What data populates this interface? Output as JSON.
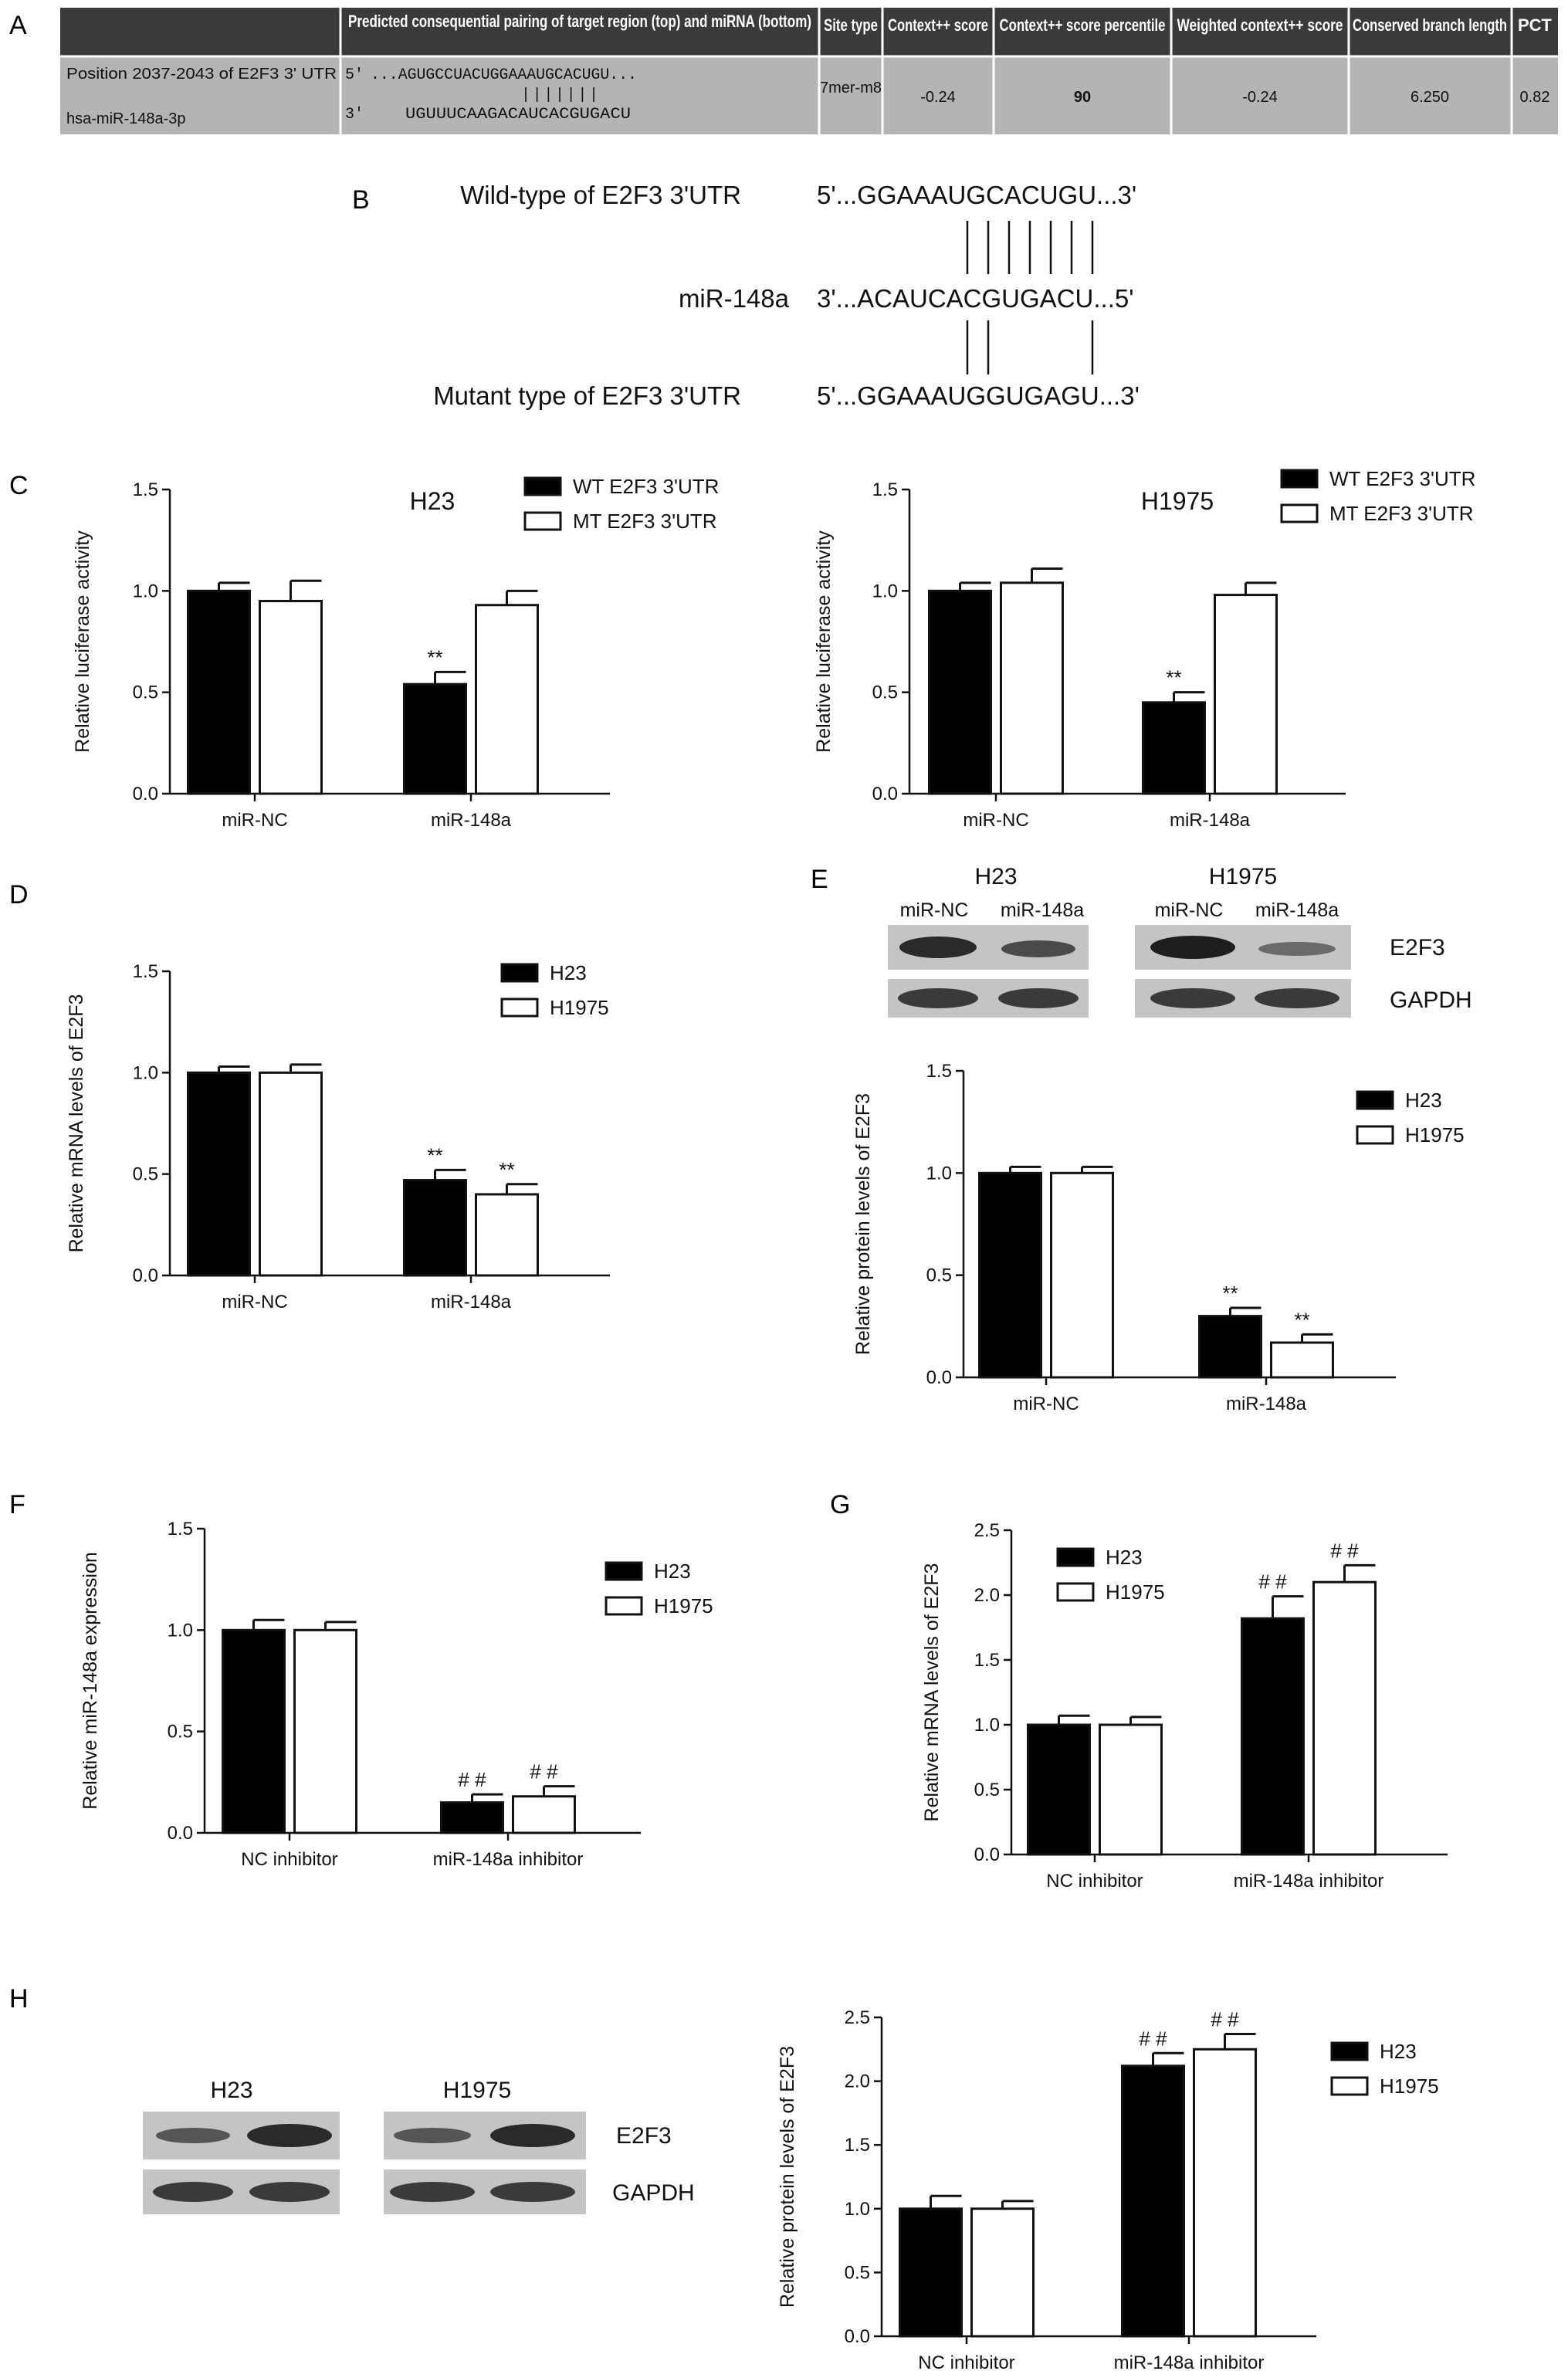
{
  "panel_labels": {
    "A": "A",
    "B": "B",
    "C": "C",
    "D": "D",
    "E": "E",
    "F": "F",
    "G": "G",
    "H": "H"
  },
  "table": {
    "headers": [
      "Predicted consequential pairing of target region (top) and miRNA (bottom)",
      "Site type",
      "Context++ score",
      "Context++ score percentile",
      "Weighted context++ score",
      "Conserved branch length",
      "PCT"
    ],
    "row_label_1": "Position 2037-2043 of E2F3 3' UTR",
    "row_label_2": "hsa-miR-148a-3p",
    "seq_top_prefix": "5'",
    "seq_top": "...AGUGCCUACUGGAAAUGCACUGU...",
    "seq_pairs": "|||||||",
    "seq_bottom_prefix": "3'",
    "seq_bottom": "UGUUUCAAGACAUCACGUGACU",
    "site_type": "7mer-m8",
    "context_score": "-0.24",
    "context_percentile": "90",
    "weighted_context": "-0.24",
    "branch_length": "6.250",
    "pct": "0.82"
  },
  "alignment": {
    "wt_label": "Wild-type of E2F3 3'UTR",
    "wt_seq": "5'...GGAAAUGCACUGU...3'",
    "mir_label": "miR-148a",
    "mir_seq": "3'...ACAUCACGUGACU...5'",
    "mt_label": "Mutant type of E2F3 3'UTR",
    "mt_seq": "5'...GGAAAUGGUGAGU...3'"
  },
  "blots": {
    "E": {
      "groups": [
        "H23",
        "H1975"
      ],
      "lanes": [
        "miR-NC",
        "miR-148a",
        "miR-NC",
        "miR-148a"
      ],
      "bands": [
        "E2F3",
        "GAPDH"
      ]
    },
    "H": {
      "groups": [
        "H23",
        "H1975"
      ],
      "bands": [
        "E2F3",
        "GAPDH"
      ]
    }
  },
  "colors": {
    "series1": "#000000",
    "series2": "#ffffff",
    "table_header": "#3a3a3a",
    "table_body": "#b4b4b4"
  },
  "chart_data": [
    {
      "id": "C1",
      "type": "bar",
      "title": "H23",
      "categories": [
        "miR-NC",
        "miR-148a"
      ],
      "ylabel": "Relative luciferase activity",
      "ylim": [
        0,
        1.5
      ],
      "yticks": [
        "0.0",
        "0.5",
        "1.0",
        "1.5"
      ],
      "series": [
        {
          "name": "WT E2F3 3'UTR",
          "values": [
            1.0,
            0.54
          ],
          "errors": [
            0.04,
            0.06
          ],
          "marks": [
            "",
            "**"
          ]
        },
        {
          "name": "MT E2F3 3'UTR",
          "values": [
            0.95,
            0.93
          ],
          "errors": [
            0.1,
            0.07
          ],
          "marks": [
            "",
            ""
          ]
        }
      ]
    },
    {
      "id": "C2",
      "type": "bar",
      "title": "H1975",
      "categories": [
        "miR-NC",
        "miR-148a"
      ],
      "ylabel": "Relative luciferase activity",
      "ylim": [
        0,
        1.5
      ],
      "yticks": [
        "0.0",
        "0.5",
        "1.0",
        "1.5"
      ],
      "series": [
        {
          "name": "WT E2F3 3'UTR",
          "values": [
            1.0,
            0.45
          ],
          "errors": [
            0.04,
            0.05
          ],
          "marks": [
            "",
            "**"
          ]
        },
        {
          "name": "MT E2F3 3'UTR",
          "values": [
            1.04,
            0.98
          ],
          "errors": [
            0.07,
            0.06
          ],
          "marks": [
            "",
            ""
          ]
        }
      ]
    },
    {
      "id": "D",
      "type": "bar",
      "title": "",
      "categories": [
        "miR-NC",
        "miR-148a"
      ],
      "ylabel": "Relative mRNA levels of E2F3",
      "ylim": [
        0,
        1.5
      ],
      "yticks": [
        "0.0",
        "0.5",
        "1.0",
        "1.5"
      ],
      "series": [
        {
          "name": "H23",
          "values": [
            1.0,
            0.47
          ],
          "errors": [
            0.03,
            0.05
          ],
          "marks": [
            "",
            "**"
          ]
        },
        {
          "name": "H1975",
          "values": [
            1.0,
            0.4
          ],
          "errors": [
            0.04,
            0.05
          ],
          "marks": [
            "",
            "**"
          ]
        }
      ]
    },
    {
      "id": "E",
      "type": "bar",
      "title": "",
      "categories": [
        "miR-NC",
        "miR-148a"
      ],
      "ylabel": "Relative protein levels of E2F3",
      "ylim": [
        0,
        1.5
      ],
      "yticks": [
        "0.0",
        "0.5",
        "1.0",
        "1.5"
      ],
      "series": [
        {
          "name": "H23",
          "values": [
            1.0,
            0.3
          ],
          "errors": [
            0.03,
            0.04
          ],
          "marks": [
            "",
            "**"
          ]
        },
        {
          "name": "H1975",
          "values": [
            1.0,
            0.17
          ],
          "errors": [
            0.03,
            0.04
          ],
          "marks": [
            "",
            "**"
          ]
        }
      ]
    },
    {
      "id": "F",
      "type": "bar",
      "title": "",
      "categories": [
        "NC inhibitor",
        "miR-148a inhibitor"
      ],
      "ylabel": "Relative miR-148a expression",
      "ylim": [
        0,
        1.5
      ],
      "yticks": [
        "0.0",
        "0.5",
        "1.0",
        "1.5"
      ],
      "series": [
        {
          "name": "H23",
          "values": [
            1.0,
            0.15
          ],
          "errors": [
            0.05,
            0.04
          ],
          "marks": [
            "",
            "##"
          ]
        },
        {
          "name": "H1975",
          "values": [
            1.0,
            0.18
          ],
          "errors": [
            0.04,
            0.05
          ],
          "marks": [
            "",
            "##"
          ]
        }
      ]
    },
    {
      "id": "G",
      "type": "bar",
      "title": "",
      "categories": [
        "NC inhibitor",
        "miR-148a inhibitor"
      ],
      "ylabel": "Relative mRNA levels of E2F3",
      "ylim": [
        0,
        2.5
      ],
      "yticks": [
        "0.0",
        "0.5",
        "1.0",
        "1.5",
        "2.0",
        "2.5"
      ],
      "series": [
        {
          "name": "H23",
          "values": [
            1.0,
            1.82
          ],
          "errors": [
            0.07,
            0.17
          ],
          "marks": [
            "",
            "##"
          ]
        },
        {
          "name": "H1975",
          "values": [
            1.0,
            2.1
          ],
          "errors": [
            0.06,
            0.13
          ],
          "marks": [
            "",
            "##"
          ]
        }
      ]
    },
    {
      "id": "H",
      "type": "bar",
      "title": "",
      "categories": [
        "NC inhibitor",
        "miR-148a inhibitor"
      ],
      "ylabel": "Relative protein levels of E2F3",
      "ylim": [
        0,
        2.5
      ],
      "yticks": [
        "0.0",
        "0.5",
        "1.0",
        "1.5",
        "2.0",
        "2.5"
      ],
      "series": [
        {
          "name": "H23",
          "values": [
            1.0,
            2.12
          ],
          "errors": [
            0.1,
            0.1
          ],
          "marks": [
            "",
            "##"
          ]
        },
        {
          "name": "H1975",
          "values": [
            1.0,
            2.25
          ],
          "errors": [
            0.06,
            0.12
          ],
          "marks": [
            "",
            "##"
          ]
        }
      ]
    }
  ]
}
